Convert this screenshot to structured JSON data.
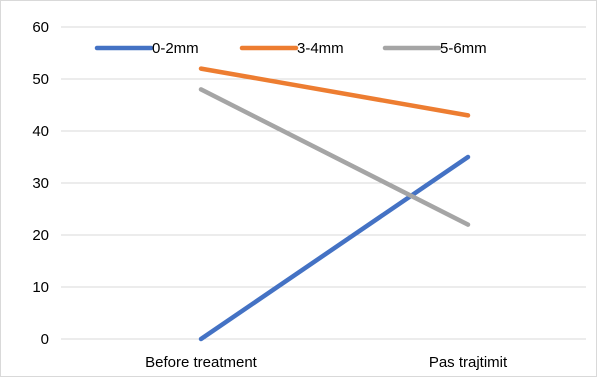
{
  "chart_data": {
    "type": "line",
    "categories": [
      "Before treatment",
      "Pas trajtimit"
    ],
    "series": [
      {
        "name": "0-2mm",
        "values": [
          0,
          35
        ],
        "color": "#4472C4"
      },
      {
        "name": "3-4mm",
        "values": [
          52,
          43
        ],
        "color": "#ED7D31"
      },
      {
        "name": "5-6mm",
        "values": [
          48,
          22
        ],
        "color": "#A5A5A5"
      }
    ],
    "ylim": [
      0,
      60
    ],
    "yticks": [
      0,
      10,
      20,
      30,
      40,
      50,
      60
    ],
    "grid": true,
    "legend_position": "top",
    "title": "",
    "xlabel": "",
    "ylabel": ""
  }
}
